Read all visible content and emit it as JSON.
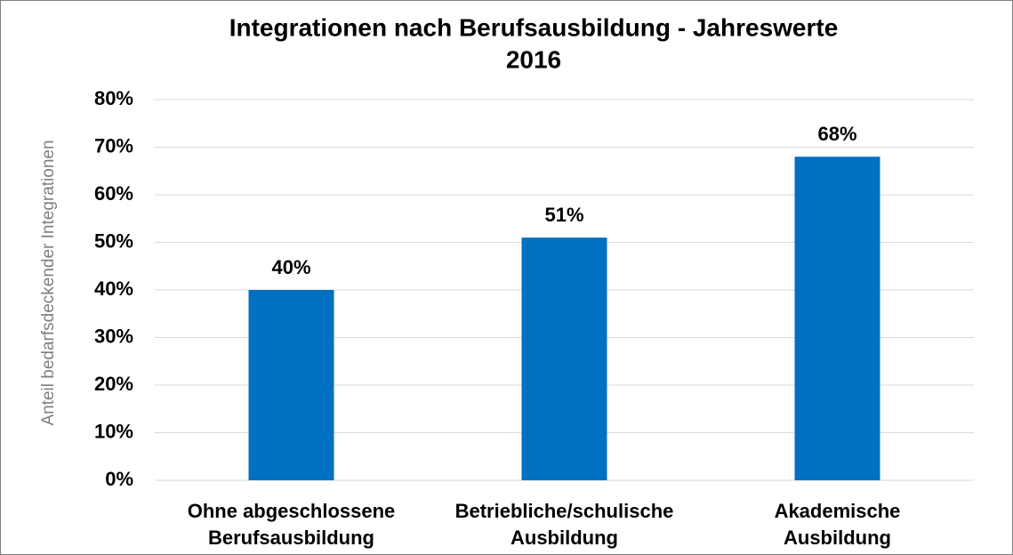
{
  "chart_data": {
    "type": "bar",
    "title": [
      "Integrationen nach Berufsausbildung - Jahreswerte",
      "2016"
    ],
    "y_label": "Anteil bedarfsdeckender Integrationen",
    "categories": [
      [
        "Ohne abgeschlossene",
        "Berufsausbildung"
      ],
      [
        "Betriebliche/schulische",
        "Ausbildung"
      ],
      [
        "Akademische",
        "Ausbildung"
      ]
    ],
    "values": [
      40,
      51,
      68
    ],
    "value_labels": [
      "40%",
      "51%",
      "68%"
    ],
    "color": "#0070c0",
    "ylim": [
      0,
      80
    ],
    "yticks": [
      {
        "value": 0,
        "label": "0%"
      },
      {
        "value": 10,
        "label": "10%"
      },
      {
        "value": 20,
        "label": "20%"
      },
      {
        "value": 30,
        "label": "30%"
      },
      {
        "value": 40,
        "label": "40%"
      },
      {
        "value": 50,
        "label": "50%"
      },
      {
        "value": 60,
        "label": "60%"
      },
      {
        "value": 70,
        "label": "70%"
      },
      {
        "value": 80,
        "label": "80%"
      }
    ],
    "grid": true
  }
}
